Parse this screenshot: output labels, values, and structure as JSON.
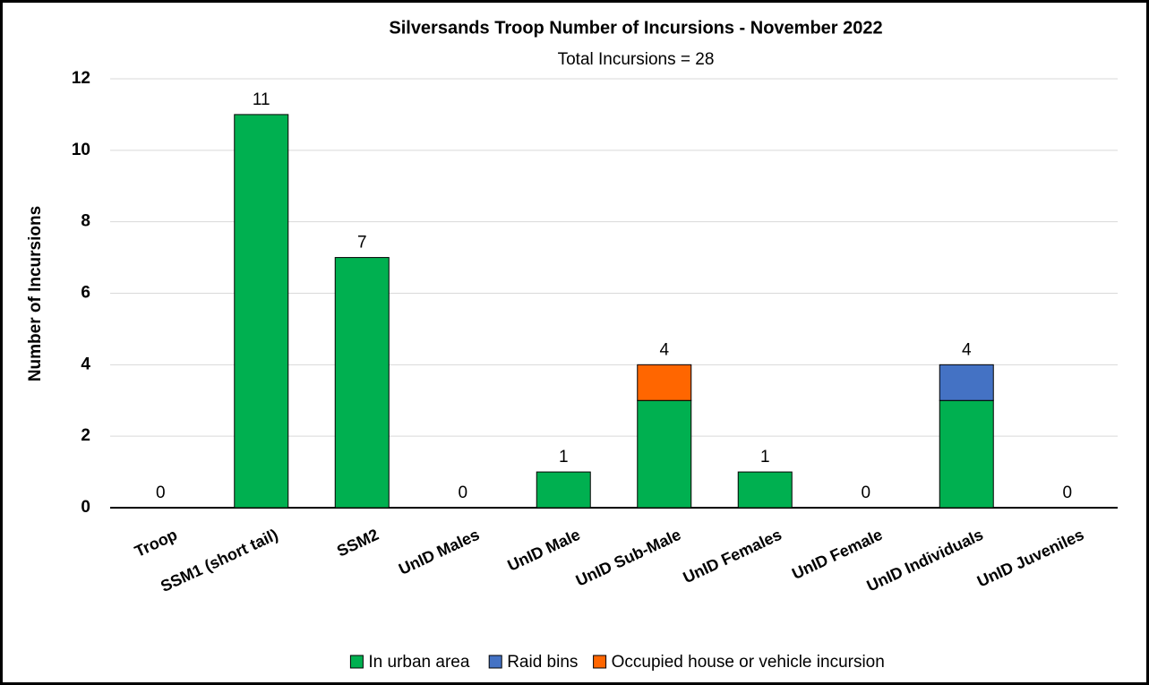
{
  "chart_data": {
    "type": "stacked_bar",
    "title": "Silversands Troop Number of Incursions - November 2022",
    "subtitle": "Total Incursions =  28",
    "y_label": "Number of Incursions",
    "categories": [
      "Troop",
      "SSM1 (short tail)",
      "SSM2",
      "UnID Males",
      "UnID Male",
      "UnID Sub-Male",
      "UnID Females",
      "UnID Female",
      "UnID Individuals",
      "UnID Juveniles"
    ],
    "series": [
      {
        "name": "In urban area",
        "color": "#00b050",
        "values": [
          0,
          11,
          7,
          0,
          1,
          3,
          1,
          0,
          3,
          0
        ]
      },
      {
        "name": "Raid bins",
        "color": "#4472c4",
        "values": [
          0,
          0,
          0,
          0,
          0,
          0,
          0,
          0,
          1,
          0
        ]
      },
      {
        "name": "Occupied house or vehicle incursion",
        "color": "#ff6600",
        "values": [
          0,
          0,
          0,
          0,
          0,
          1,
          0,
          0,
          0,
          0
        ]
      }
    ],
    "totals": [
      0,
      11,
      7,
      0,
      1,
      4,
      1,
      0,
      4,
      0
    ],
    "ylim": [
      0,
      12
    ],
    "yticks": [
      0,
      2,
      4,
      6,
      8,
      10,
      12
    ],
    "grid": true,
    "legend": "bottom"
  }
}
